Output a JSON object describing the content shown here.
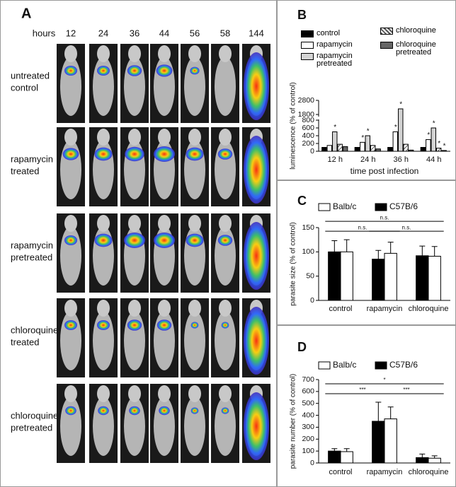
{
  "panel_a": {
    "label": "A",
    "column_header": "hours",
    "hours": [
      12,
      24,
      36,
      44,
      56,
      58,
      144
    ],
    "rows": [
      [
        "untreated",
        "control"
      ],
      [
        "rapamycin",
        "treated"
      ],
      [
        "rapamycin",
        "pretreated"
      ],
      [
        "chloroquine",
        "treated"
      ],
      [
        "chloroquine",
        "pretreated"
      ]
    ]
  },
  "chart_data": [
    {
      "type": "bar",
      "panel": "B",
      "xlabel": "time post infection",
      "ylabel": "luminescence (% of control)",
      "categories": [
        "12 h",
        "24 h",
        "36 h",
        "44 h"
      ],
      "series": [
        {
          "name": "control",
          "color": "#000000",
          "values": [
            100,
            100,
            100,
            100
          ],
          "markers": [
            null,
            null,
            null,
            null
          ]
        },
        {
          "name": "rapamycin",
          "color": "#ffffff",
          "values": [
            150,
            230,
            500,
            300
          ],
          "markers": [
            null,
            "*",
            "*",
            "*"
          ]
        },
        {
          "name": "rapamycin pretreated",
          "color": "#d4d4d4",
          "values": [
            500,
            400,
            2200,
            600
          ],
          "markers": [
            "*",
            "*",
            "*",
            "*"
          ]
        },
        {
          "name": "chloroquine",
          "color": "#ffffff",
          "pattern": "hatch",
          "values": [
            180,
            150,
            180,
            80
          ],
          "markers": [
            null,
            null,
            null,
            "*"
          ]
        },
        {
          "name": "chloroquine pretreated",
          "color": "#666666",
          "values": [
            120,
            60,
            30,
            20
          ],
          "markers": [
            null,
            null,
            null,
            "*"
          ]
        }
      ],
      "ylim": [
        0,
        2800
      ],
      "axis_break": [
        800,
        1700
      ],
      "yticks": [
        0,
        200,
        400,
        600,
        800,
        1800,
        2800
      ]
    },
    {
      "type": "bar",
      "panel": "C",
      "ylabel": "parasite size (% of control)",
      "categories": [
        "control",
        "rapamycin",
        "chloroquine"
      ],
      "series": [
        {
          "name": "C57B/6",
          "color": "#000000",
          "values": [
            100,
            85,
            92
          ],
          "errors": [
            23,
            18,
            20
          ]
        },
        {
          "name": "Balb/c",
          "color": "#ffffff",
          "values": [
            100,
            97,
            91
          ],
          "errors": [
            25,
            23,
            20
          ]
        }
      ],
      "brackets": [
        {
          "from": "control",
          "to": "rapamycin",
          "label": "n.s."
        },
        {
          "from": "control",
          "to": "chloroquine",
          "label": "n.s."
        },
        {
          "from": "rapamycin",
          "to": "chloroquine",
          "label": "n.s."
        }
      ],
      "ylim": [
        0,
        150
      ],
      "yticks": [
        0,
        50,
        100,
        150
      ]
    },
    {
      "type": "bar",
      "panel": "D",
      "ylabel": "parasite number (% of control)",
      "categories": [
        "control",
        "rapamycin",
        "chloroquine"
      ],
      "series": [
        {
          "name": "C57B/6",
          "color": "#000000",
          "values": [
            100,
            350,
            45
          ],
          "errors": [
            20,
            160,
            30
          ]
        },
        {
          "name": "Balb/c",
          "color": "#ffffff",
          "values": [
            95,
            370,
            40
          ],
          "errors": [
            25,
            100,
            20
          ]
        }
      ],
      "brackets": [
        {
          "from": "control",
          "to": "rapamycin",
          "label": "***"
        },
        {
          "from": "control",
          "to": "chloroquine",
          "label": "*"
        },
        {
          "from": "rapamycin",
          "to": "chloroquine",
          "label": "***"
        }
      ],
      "ylim": [
        0,
        700
      ],
      "yticks": [
        0,
        100,
        200,
        300,
        400,
        500,
        600,
        700
      ]
    }
  ]
}
